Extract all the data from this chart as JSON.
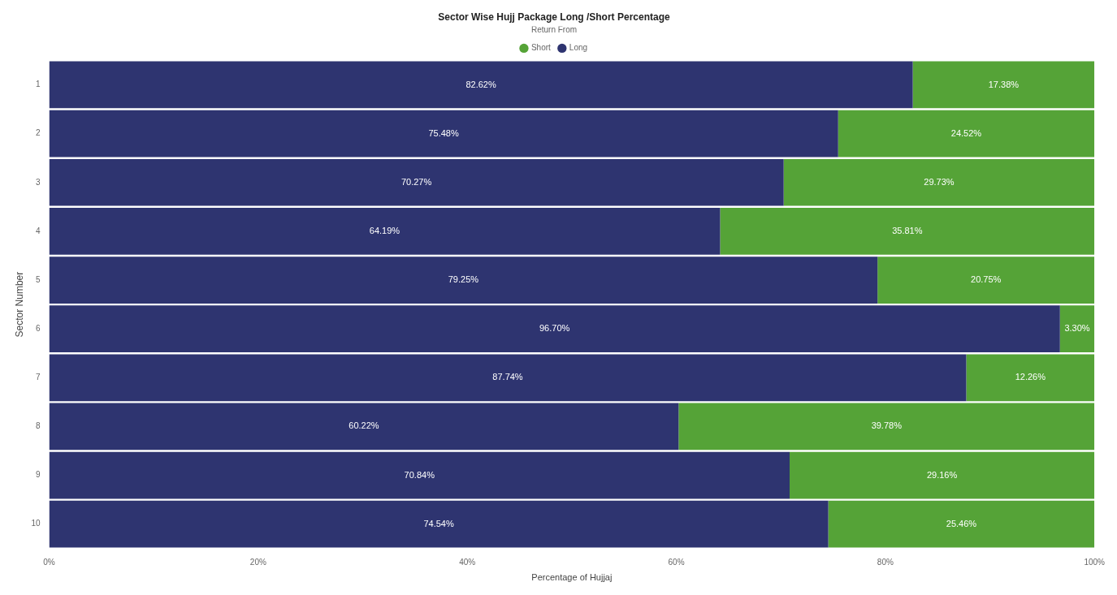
{
  "chart_data": {
    "type": "bar",
    "orientation": "horizontal",
    "stacked": true,
    "title": "Sector Wise Hujj Package Long /Short Percentage",
    "xlabel": "Percentage of Hujjaj",
    "ylabel": "Sector Number",
    "legend_title": "Return From",
    "categories": [
      "1",
      "2",
      "3",
      "4",
      "5",
      "6",
      "7",
      "8",
      "9",
      "10"
    ],
    "series": [
      {
        "name": "Long",
        "color": "#2e3470",
        "values": [
          82.62,
          75.48,
          70.27,
          64.19,
          79.25,
          96.7,
          87.74,
          60.22,
          70.84,
          74.54
        ],
        "value_labels": [
          "82.62%",
          "75.48%",
          "70.27%",
          "64.19%",
          "79.25%",
          "96.70%",
          "87.74%",
          "60.22%",
          "70.84%",
          "74.54%"
        ]
      },
      {
        "name": "Short",
        "color": "#55a337",
        "values": [
          17.38,
          24.52,
          29.73,
          35.81,
          20.75,
          3.3,
          12.26,
          39.78,
          29.16,
          25.46
        ],
        "value_labels": [
          "17.38%",
          "24.52%",
          "29.73%",
          "35.81%",
          "20.75%",
          "3.30%",
          "12.26%",
          "39.78%",
          "29.16%",
          "25.46%"
        ]
      }
    ],
    "xlim": [
      0,
      100
    ],
    "xticks": [
      {
        "value": 0,
        "label": "0%"
      },
      {
        "value": 20,
        "label": "20%"
      },
      {
        "value": 40,
        "label": "40%"
      },
      {
        "value": 60,
        "label": "60%"
      },
      {
        "value": 80,
        "label": "80%"
      },
      {
        "value": 100,
        "label": "100%"
      }
    ],
    "grid": false,
    "legend": "top"
  }
}
